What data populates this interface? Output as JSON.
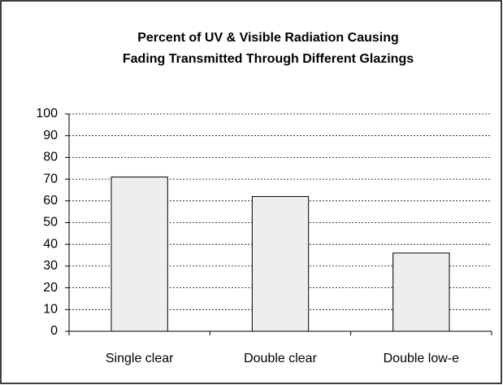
{
  "chart_data": {
    "type": "bar",
    "title": [
      "Percent of UV & Visible Radiation Causing",
      "Fading Transmitted Through Different Glazings"
    ],
    "categories": [
      "Single clear",
      "Double clear",
      "Double low-e"
    ],
    "values": [
      71,
      62,
      36
    ],
    "color": "#eeeeee",
    "ylim": [
      0,
      100
    ],
    "yticks": [
      0,
      10,
      20,
      30,
      40,
      50,
      60,
      70,
      80,
      90,
      100
    ],
    "grid": true
  }
}
